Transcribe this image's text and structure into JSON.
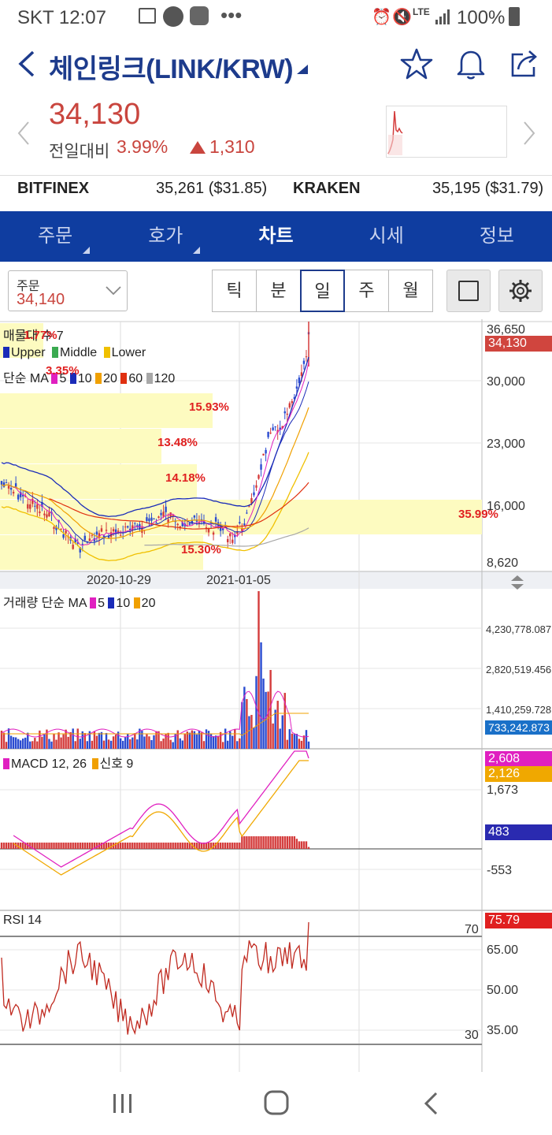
{
  "status_bar": {
    "carrier_time": "SKT 12:07",
    "notification_icons": [
      "image-icon",
      "kakao-icon",
      "owl-icon",
      "more-dots-icon"
    ],
    "network": "LTE",
    "battery": "100%"
  },
  "header": {
    "title": "체인링크(LINK/KRW)",
    "price": "34,130",
    "change_label": "전일대비",
    "change_pct": "3.99%",
    "change_value": "1,310",
    "up_color": "#c9453e"
  },
  "exchanges": [
    {
      "name": "BITFINEX",
      "price": "35,261 ($31.85)"
    },
    {
      "name": "KRAKEN",
      "price": "35,195 ($31.79)"
    }
  ],
  "tabs": [
    {
      "label": "주문",
      "dropdown": true
    },
    {
      "label": "호가",
      "dropdown": true
    },
    {
      "label": "차트",
      "active": true
    },
    {
      "label": "시세"
    },
    {
      "label": "정보"
    }
  ],
  "controls": {
    "order_label": "주문",
    "order_value": "34,140",
    "periods": [
      "틱",
      "분",
      "일",
      "주",
      "월"
    ],
    "selected_period": "일"
  },
  "price_chart": {
    "volume_profile_label": "매물대 수 7",
    "bollinger_legend": [
      "Upper",
      "Middle",
      "Lower"
    ],
    "ma_legend_prefix": "단순 MA",
    "ma_periods": [
      "5",
      "10",
      "20",
      "60",
      "120"
    ],
    "profile_percents": [
      "1.77%",
      "3.35%",
      "15.93%",
      "13.48%",
      "14.18%",
      "35.99%",
      "15.30%"
    ],
    "y_ticks": [
      "36,650",
      "30,000",
      "23,000",
      "16,000",
      "8,620"
    ],
    "current_price_tag": "34,130",
    "x_ticks": [
      "2020-10-29",
      "2021-01-05"
    ]
  },
  "volume_chart": {
    "legend_prefix": "거래량 단순 MA",
    "ma_periods": [
      "5",
      "10",
      "20"
    ],
    "y_ticks": [
      "4,230,778.087",
      "2,820,519.456",
      "1,410,259.728"
    ],
    "current_tag": "733,242.873"
  },
  "macd_chart": {
    "legend_prefix": "MACD 12, 26",
    "signal_label": "신호 9",
    "tags": [
      "2,608",
      "2,126",
      "483"
    ],
    "y_ticks": [
      "1,673",
      "-553"
    ]
  },
  "rsi_chart": {
    "legend": "RSI 14",
    "current_tag": "75.79",
    "levels": [
      "70",
      "30"
    ],
    "y_ticks": [
      "65.00",
      "50.00",
      "35.00"
    ]
  },
  "colors": {
    "brand_blue": "#0f3da0",
    "up_red": "#c9453e",
    "ma5": "#e020c0",
    "ma10": "#1a2bb8",
    "ma20": "#f0a000",
    "ma60": "#e03010",
    "ma120": "#a8a8a8",
    "profile": "#fdfbc0"
  }
}
